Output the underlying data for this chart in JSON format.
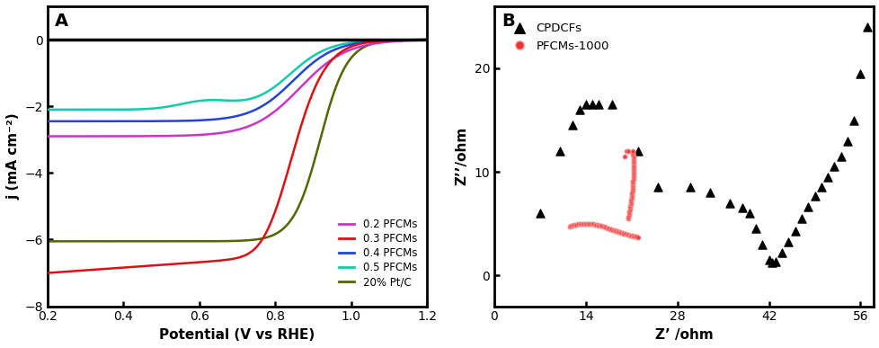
{
  "panel_A_label": "A",
  "panel_B_label": "B",
  "xlabel_A": "Potential (V vs RHE)",
  "ylabel_A": "j (mA cm⁻²)",
  "xlabel_B": "Z’ /ohm",
  "ylabel_B": "Z’’/ohm",
  "xlim_A": [
    0.2,
    1.2
  ],
  "ylim_A": [
    -8,
    1
  ],
  "xlim_B": [
    0,
    58
  ],
  "ylim_B": [
    -3,
    26
  ],
  "xticks_A": [
    0.2,
    0.4,
    0.6,
    0.8,
    1.0,
    1.2
  ],
  "yticks_A": [
    -8,
    -6,
    -4,
    -2,
    0
  ],
  "xticks_B": [
    0,
    14,
    28,
    42,
    56
  ],
  "yticks_B": [
    0,
    10,
    20
  ],
  "legend_A": [
    {
      "label": "0.2 PFCMs",
      "color": "#cc33cc"
    },
    {
      "label": "0.3 PFCMs",
      "color": "#dd1111"
    },
    {
      "label": "0.4 PFCMs",
      "color": "#2244dd"
    },
    {
      "label": "0.5 PFCMs",
      "color": "#11ccaa"
    },
    {
      "label": "20% Pt/C",
      "color": "#556600"
    }
  ],
  "legend_B": [
    {
      "label": "CPDCFs",
      "color": "#111111",
      "marker": "^"
    },
    {
      "label": "PFCMs-1000",
      "color": "#dd2222",
      "marker": "o"
    }
  ],
  "background_color": "#ffffff",
  "axis_linewidth": 2.0
}
